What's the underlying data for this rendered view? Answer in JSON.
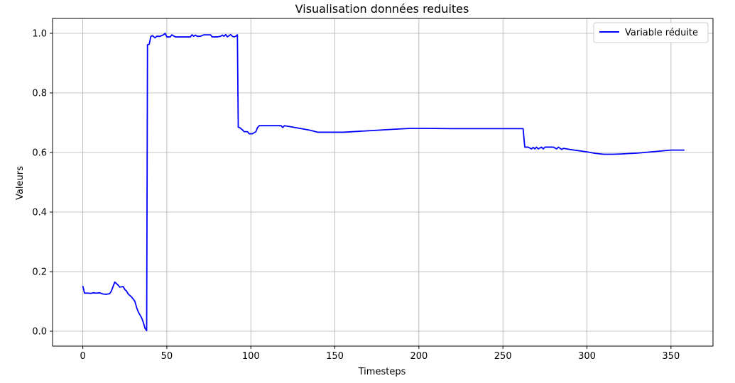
{
  "chart_data": {
    "type": "line",
    "title": "Visualisation données reduites",
    "xlabel": "Timesteps",
    "ylabel": "Valeurs",
    "xlim": [
      -18,
      375
    ],
    "ylim": [
      -0.05,
      1.05
    ],
    "xticks": [
      0,
      50,
      100,
      150,
      200,
      250,
      300,
      350
    ],
    "yticks": [
      0.0,
      0.2,
      0.4,
      0.6,
      0.8,
      1.0
    ],
    "grid": true,
    "legend_position": "top-right",
    "line_color": "#0000ff",
    "series": [
      {
        "name": "Variable réduite",
        "points": [
          [
            0,
            0.152
          ],
          [
            1,
            0.128
          ],
          [
            3,
            0.128
          ],
          [
            5,
            0.127
          ],
          [
            6,
            0.129
          ],
          [
            8,
            0.128
          ],
          [
            10,
            0.129
          ],
          [
            12,
            0.125
          ],
          [
            14,
            0.124
          ],
          [
            16,
            0.126
          ],
          [
            17,
            0.135
          ],
          [
            18,
            0.15
          ],
          [
            19,
            0.165
          ],
          [
            20,
            0.16
          ],
          [
            21,
            0.155
          ],
          [
            22,
            0.148
          ],
          [
            24,
            0.15
          ],
          [
            25,
            0.14
          ],
          [
            26,
            0.135
          ],
          [
            27,
            0.125
          ],
          [
            28,
            0.12
          ],
          [
            29,
            0.115
          ],
          [
            30,
            0.108
          ],
          [
            31,
            0.1
          ],
          [
            32,
            0.08
          ],
          [
            33,
            0.065
          ],
          [
            34,
            0.055
          ],
          [
            35,
            0.045
          ],
          [
            36,
            0.03
          ],
          [
            37,
            0.01
          ],
          [
            38,
            0.002
          ],
          [
            38.5,
            0.962
          ],
          [
            39.5,
            0.963
          ],
          [
            40.5,
            0.99
          ],
          [
            41.5,
            0.992
          ],
          [
            43,
            0.985
          ],
          [
            44,
            0.99
          ],
          [
            46,
            0.99
          ],
          [
            48,
            0.995
          ],
          [
            49,
            1.0
          ],
          [
            50,
            0.988
          ],
          [
            52,
            0.988
          ],
          [
            53,
            0.995
          ],
          [
            55,
            0.988
          ],
          [
            60,
            0.988
          ],
          [
            64,
            0.988
          ],
          [
            65,
            0.995
          ],
          [
            66,
            0.99
          ],
          [
            67,
            0.994
          ],
          [
            68,
            0.99
          ],
          [
            70,
            0.99
          ],
          [
            72,
            0.995
          ],
          [
            76,
            0.995
          ],
          [
            77,
            0.988
          ],
          [
            80,
            0.988
          ],
          [
            82,
            0.99
          ],
          [
            83,
            0.994
          ],
          [
            84,
            0.99
          ],
          [
            85,
            0.996
          ],
          [
            86,
            0.988
          ],
          [
            87,
            0.992
          ],
          [
            88,
            0.996
          ],
          [
            89,
            0.99
          ],
          [
            90,
            0.988
          ],
          [
            91,
            0.99
          ],
          [
            92,
            0.995
          ],
          [
            92.5,
            0.685
          ],
          [
            93.5,
            0.683
          ],
          [
            95,
            0.676
          ],
          [
            96,
            0.67
          ],
          [
            98,
            0.67
          ],
          [
            99,
            0.663
          ],
          [
            101,
            0.663
          ],
          [
            103,
            0.67
          ],
          [
            104,
            0.684
          ],
          [
            105,
            0.69
          ],
          [
            110,
            0.69
          ],
          [
            114,
            0.69
          ],
          [
            118,
            0.69
          ],
          [
            119,
            0.684
          ],
          [
            120,
            0.69
          ],
          [
            125,
            0.685
          ],
          [
            130,
            0.68
          ],
          [
            135,
            0.675
          ],
          [
            140,
            0.668
          ],
          [
            145,
            0.668
          ],
          [
            155,
            0.668
          ],
          [
            170,
            0.673
          ],
          [
            185,
            0.678
          ],
          [
            195,
            0.681
          ],
          [
            205,
            0.681
          ],
          [
            220,
            0.68
          ],
          [
            240,
            0.68
          ],
          [
            262,
            0.68
          ],
          [
            263,
            0.618
          ],
          [
            265,
            0.618
          ],
          [
            267,
            0.612
          ],
          [
            268,
            0.617
          ],
          [
            269,
            0.612
          ],
          [
            270,
            0.618
          ],
          [
            271,
            0.612
          ],
          [
            273,
            0.618
          ],
          [
            274,
            0.612
          ],
          [
            275,
            0.618
          ],
          [
            280,
            0.618
          ],
          [
            282,
            0.612
          ],
          [
            283,
            0.618
          ],
          [
            285,
            0.61
          ],
          [
            286,
            0.614
          ],
          [
            290,
            0.61
          ],
          [
            300,
            0.602
          ],
          [
            305,
            0.597
          ],
          [
            310,
            0.594
          ],
          [
            315,
            0.594
          ],
          [
            320,
            0.595
          ],
          [
            330,
            0.598
          ],
          [
            340,
            0.603
          ],
          [
            350,
            0.608
          ],
          [
            358,
            0.608
          ]
        ]
      }
    ]
  }
}
